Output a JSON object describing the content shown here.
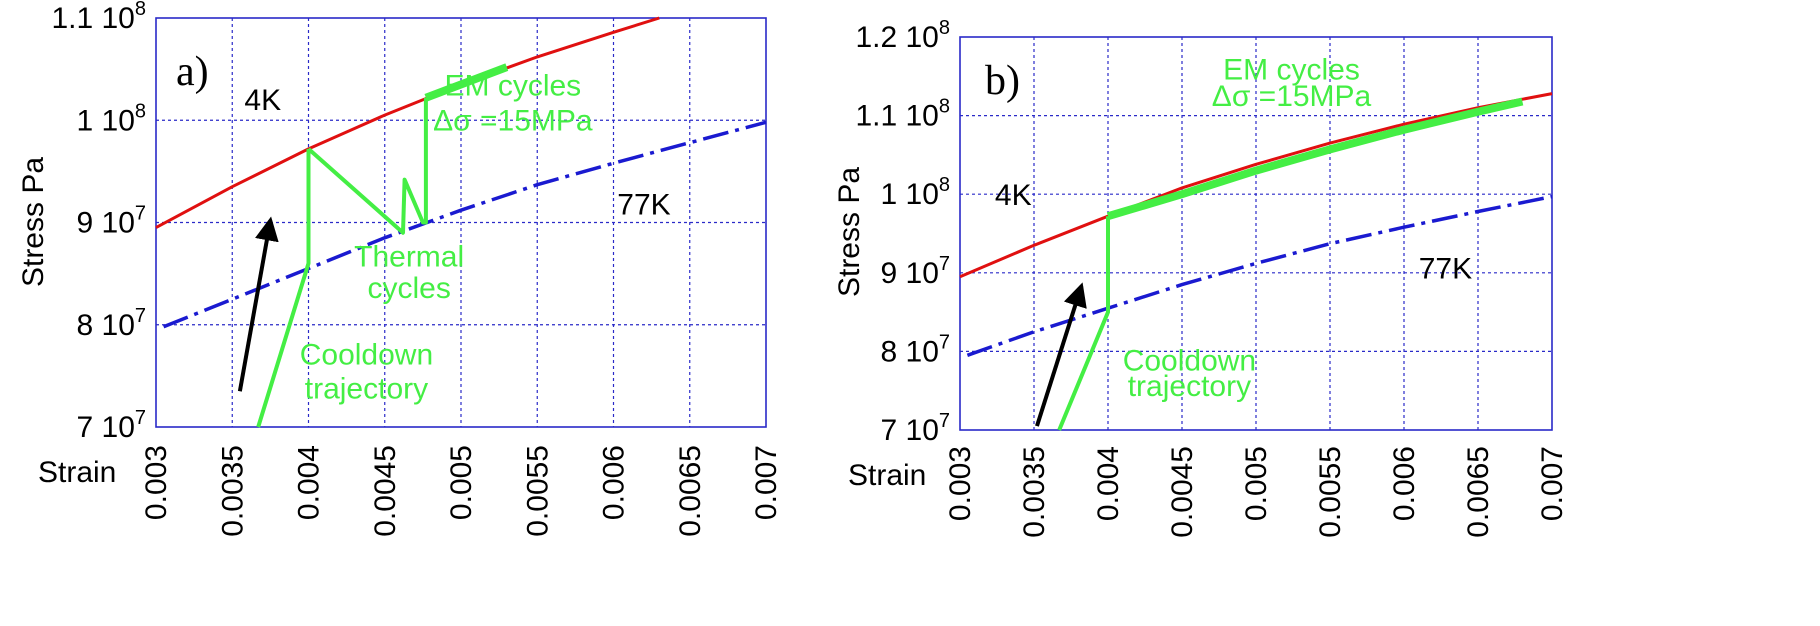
{
  "colors": {
    "frame": "#2a2ac8",
    "grid": "#2a2ac8",
    "curve_4k": "#e01010",
    "curve_77k": "#1a1ad0",
    "trajectory": "#44ee44",
    "arrow": "#000000"
  },
  "chart_data": [
    {
      "type": "line",
      "panel_label": "a)",
      "xlabel": "Strain",
      "ylabel": "Stress Pa",
      "xlim": [
        0.003,
        0.007
      ],
      "ylim": [
        70000000,
        110000000
      ],
      "x_ticks": [
        0.003,
        0.0035,
        0.004,
        0.0045,
        0.005,
        0.0055,
        0.006,
        0.0065,
        0.007
      ],
      "x_tick_labels": [
        "0.003",
        "0.0035",
        "0.004",
        "0.0045",
        "0.005",
        "0.0055",
        "0.006",
        "0.0065",
        "0.007"
      ],
      "y_ticks": [
        70000000,
        80000000,
        90000000,
        100000000,
        110000000
      ],
      "y_tick_labels": [
        {
          "base": "7 10",
          "exp": "7"
        },
        {
          "base": "8 10",
          "exp": "7"
        },
        {
          "base": "9 10",
          "exp": "7"
        },
        {
          "base": "1 10",
          "exp": "8"
        },
        {
          "base": "1.1 10",
          "exp": "8"
        }
      ],
      "grid": true,
      "series": [
        {
          "name": "4K",
          "style": "solid-red",
          "x": [
            0.003,
            0.0035,
            0.004,
            0.0045,
            0.005,
            0.0055,
            0.006,
            0.0063
          ],
          "y": [
            89500000,
            93500000,
            97200000,
            100500000,
            103500000,
            106200000,
            108600000,
            110000000
          ]
        },
        {
          "name": "77K",
          "style": "dashdot-blue",
          "x": [
            0.00305,
            0.0035,
            0.004,
            0.0045,
            0.005,
            0.0055,
            0.006,
            0.0065,
            0.007
          ],
          "y": [
            79800000,
            82500000,
            85500000,
            88500000,
            91200000,
            93700000,
            95800000,
            97800000,
            99800000
          ]
        },
        {
          "name": "Cooldown trajectory",
          "style": "green",
          "x": [
            0.00367,
            0.004,
            0.004
          ],
          "y": [
            70000000,
            86000000,
            97200000
          ]
        },
        {
          "name": "Thermal cycles",
          "style": "green",
          "x": [
            0.004,
            0.00462,
            0.00463,
            0.00475,
            0.00477,
            0.00477
          ],
          "y": [
            97200000,
            89000000,
            94200000,
            90000000,
            90000000,
            102200000
          ]
        },
        {
          "name": "EM cycles",
          "style": "green-thick",
          "x": [
            0.00477,
            0.0053
          ],
          "y": [
            102200000,
            105200000
          ]
        }
      ],
      "arrow": {
        "from": [
          0.00355,
          73500000
        ],
        "to": [
          0.00375,
          90200000
        ]
      },
      "annotations": [
        {
          "text": "4K",
          "x": 0.0037,
          "y": 101000000,
          "color": "#000000"
        },
        {
          "text": "77K",
          "x": 0.0062,
          "y": 90800000,
          "color": "#000000"
        },
        {
          "text": "Thermal",
          "x": 0.00466,
          "y": 85700000,
          "color": "#44ee44"
        },
        {
          "text": "cycles",
          "x": 0.00466,
          "y": 82600000,
          "color": "#44ee44"
        },
        {
          "text": "Cooldown",
          "x": 0.00438,
          "y": 76100000,
          "color": "#44ee44"
        },
        {
          "text": "trajectory",
          "x": 0.00438,
          "y": 72800000,
          "color": "#44ee44"
        },
        {
          "text": "EM cycles",
          "x": 0.00534,
          "y": 102400000,
          "color": "#44ee44"
        },
        {
          "text": "Δσ =15MPa",
          "x": 0.00534,
          "y": 99000000,
          "color": "#44ee44"
        }
      ]
    },
    {
      "type": "line",
      "panel_label": "b)",
      "xlabel": "Strain",
      "ylabel": "Stress Pa",
      "xlim": [
        0.003,
        0.007
      ],
      "ylim": [
        70000000,
        120000000
      ],
      "x_ticks": [
        0.003,
        0.0035,
        0.004,
        0.0045,
        0.005,
        0.0055,
        0.006,
        0.0065,
        0.007
      ],
      "x_tick_labels": [
        "0.003",
        "0.0035",
        "0.004",
        "0.0045",
        "0.005",
        "0.0055",
        "0.006",
        "0.0065",
        "0.007"
      ],
      "y_ticks": [
        70000000,
        80000000,
        90000000,
        100000000,
        110000000,
        120000000
      ],
      "y_tick_labels": [
        {
          "base": "7 10",
          "exp": "7"
        },
        {
          "base": "8 10",
          "exp": "7"
        },
        {
          "base": "9 10",
          "exp": "7"
        },
        {
          "base": "1 10",
          "exp": "8"
        },
        {
          "base": "1.1 10",
          "exp": "8"
        },
        {
          "base": "1.2 10",
          "exp": "8"
        }
      ],
      "grid": true,
      "series": [
        {
          "name": "4K",
          "style": "solid-red",
          "x": [
            0.003,
            0.0035,
            0.004,
            0.0045,
            0.005,
            0.0055,
            0.006,
            0.0065,
            0.007
          ],
          "y": [
            89500000,
            93500000,
            97200000,
            100800000,
            103800000,
            106500000,
            108900000,
            111000000,
            112800000
          ]
        },
        {
          "name": "77K",
          "style": "dashdot-blue",
          "x": [
            0.00305,
            0.0035,
            0.004,
            0.0045,
            0.005,
            0.0055,
            0.006,
            0.0065,
            0.007
          ],
          "y": [
            79500000,
            82500000,
            85500000,
            88500000,
            91200000,
            93700000,
            95800000,
            97800000,
            99700000
          ]
        },
        {
          "name": "Cooldown trajectory",
          "style": "green",
          "x": [
            0.00367,
            0.004,
            0.004
          ],
          "y": [
            70000000,
            85000000,
            97200000
          ]
        },
        {
          "name": "EM cycles",
          "style": "green-thick",
          "x": [
            0.004,
            0.0045,
            0.005,
            0.0055,
            0.006,
            0.0065,
            0.0068
          ],
          "y": [
            97200000,
            100000000,
            103000000,
            105700000,
            108200000,
            110500000,
            111800000
          ]
        }
      ],
      "arrow": {
        "from": [
          0.00352,
          70500000
        ],
        "to": [
          0.00382,
          88300000
        ]
      },
      "annotations": [
        {
          "text": "4K",
          "x": 0.00336,
          "y": 98600000,
          "color": "#000000"
        },
        {
          "text": "77K",
          "x": 0.00628,
          "y": 89300000,
          "color": "#000000"
        },
        {
          "text": "Cooldown",
          "x": 0.00455,
          "y": 77600000,
          "color": "#44ee44"
        },
        {
          "text": "trajectory",
          "x": 0.00455,
          "y": 74300000,
          "color": "#44ee44"
        },
        {
          "text": "EM cycles",
          "x": 0.00524,
          "y": 114600000,
          "color": "#44ee44"
        },
        {
          "text": "Δσ =15MPa",
          "x": 0.00524,
          "y": 111200000,
          "color": "#44ee44"
        }
      ]
    }
  ]
}
